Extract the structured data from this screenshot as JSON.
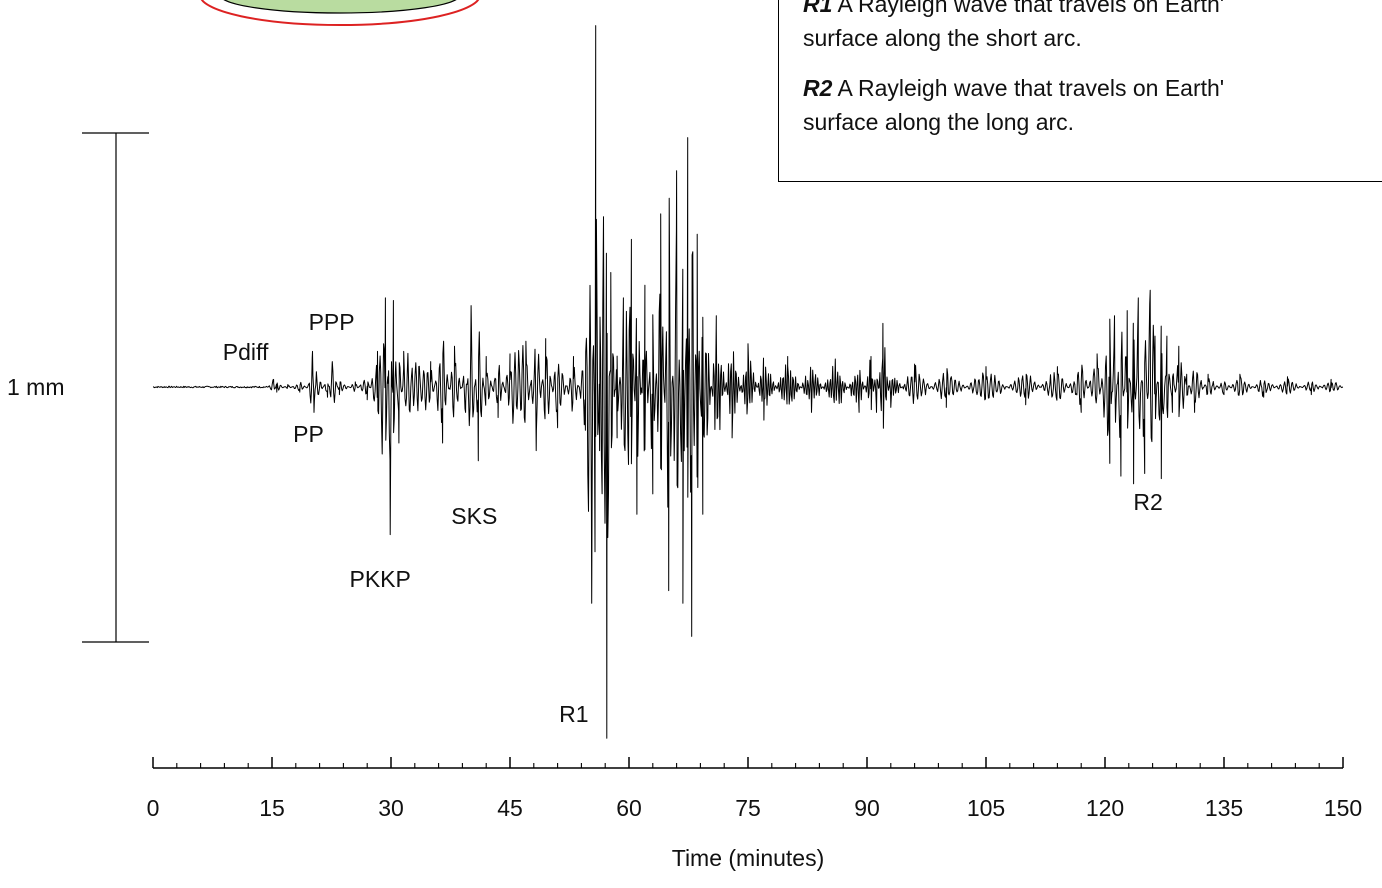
{
  "chart_data": {
    "type": "line",
    "xlabel": "Time (minutes)",
    "xlim": [
      0,
      150
    ],
    "x_ticks": [
      0,
      15,
      30,
      45,
      60,
      75,
      90,
      105,
      120,
      135,
      150
    ],
    "x_minor_tick_step": 3,
    "ylim": [
      -1.35,
      1.35
    ],
    "scale_bar": {
      "label": "1 mm",
      "value": 1
    },
    "grid": false,
    "annotations": [
      {
        "label": "Pdiff",
        "x": 15.2
      },
      {
        "label": "PPP",
        "x": 20.5
      },
      {
        "label": "PP",
        "x": 20.1
      },
      {
        "label": "PKKP",
        "x": 29.9
      },
      {
        "label": "SKS",
        "x": 41.0
      },
      {
        "label": "R1",
        "x": 57.2
      },
      {
        "label": "R2",
        "x": 123.8
      }
    ],
    "series": [
      {
        "points": [
          [
            0,
            0
          ],
          [
            14.5,
            0
          ],
          [
            15.2,
            0.03
          ],
          [
            15.6,
            -0.02
          ],
          [
            17,
            0.01
          ],
          [
            18.5,
            -0.02
          ],
          [
            19.6,
            0.01
          ],
          [
            20.1,
            0.14
          ],
          [
            20.3,
            -0.1
          ],
          [
            20.6,
            0.06
          ],
          [
            22,
            -0.04
          ],
          [
            22.6,
            0.1
          ],
          [
            23.5,
            -0.03
          ],
          [
            25.5,
            0.02
          ],
          [
            27,
            -0.05
          ],
          [
            28.3,
            0.14
          ],
          [
            29.3,
            0.35
          ],
          [
            29.6,
            0.04
          ],
          [
            29.9,
            -0.58
          ],
          [
            30.3,
            0.34
          ],
          [
            31,
            -0.22
          ],
          [
            31.6,
            0.14
          ],
          [
            33.5,
            0.08
          ],
          [
            35,
            0.1
          ],
          [
            36.5,
            -0.22
          ],
          [
            38,
            0.16
          ],
          [
            39.4,
            -0.1
          ],
          [
            40.1,
            0.32
          ],
          [
            41,
            -0.29
          ],
          [
            42,
            0.12
          ],
          [
            43.5,
            -0.12
          ],
          [
            45,
            0.13
          ],
          [
            47,
            0.18
          ],
          [
            48.3,
            -0.25
          ],
          [
            49.5,
            0.19
          ],
          [
            51,
            -0.16
          ],
          [
            53,
            0.12
          ],
          [
            54.5,
            -0.17
          ],
          [
            55.3,
            -0.85
          ],
          [
            55.8,
            1.42
          ],
          [
            56.3,
            -0.25
          ],
          [
            57.2,
            -1.38
          ],
          [
            57.7,
            0.45
          ],
          [
            58.5,
            -0.2
          ],
          [
            59.3,
            0.35
          ],
          [
            60.3,
            0.58
          ],
          [
            61,
            -0.5
          ],
          [
            62,
            0.4
          ],
          [
            63,
            -0.42
          ],
          [
            64,
            0.68
          ],
          [
            65,
            -0.8
          ],
          [
            66,
            0.85
          ],
          [
            66.8,
            -0.85
          ],
          [
            67.4,
            0.98
          ],
          [
            67.9,
            -0.98
          ],
          [
            68.6,
            0.6
          ],
          [
            69.3,
            -0.5
          ],
          [
            71,
            0.28
          ],
          [
            73,
            -0.2
          ],
          [
            75,
            0.17
          ],
          [
            77,
            -0.13
          ],
          [
            80,
            0.12
          ],
          [
            83,
            -0.1
          ],
          [
            86,
            0.11
          ],
          [
            89,
            -0.1
          ],
          [
            90.5,
            0.12
          ],
          [
            91.2,
            -0.1
          ],
          [
            92,
            0.25
          ],
          [
            93,
            -0.08
          ],
          [
            96,
            0.09
          ],
          [
            100,
            -0.08
          ],
          [
            105,
            0.08
          ],
          [
            110,
            -0.07
          ],
          [
            114,
            0.08
          ],
          [
            117,
            -0.1
          ],
          [
            119,
            0.13
          ],
          [
            120.6,
            -0.3
          ],
          [
            121.2,
            0.28
          ],
          [
            122,
            -0.35
          ],
          [
            122.8,
            0.3
          ],
          [
            123.6,
            -0.38
          ],
          [
            124.2,
            0.35
          ],
          [
            125,
            -0.34
          ],
          [
            125.7,
            0.38
          ],
          [
            126.3,
            0.2
          ],
          [
            127.1,
            -0.36
          ],
          [
            127.8,
            0.2
          ],
          [
            128.5,
            -0.1
          ],
          [
            129.3,
            0.16
          ],
          [
            130.3,
            0.05
          ],
          [
            131.3,
            -0.1
          ],
          [
            133,
            0.05
          ],
          [
            135,
            -0.03
          ],
          [
            137,
            0.05
          ],
          [
            140,
            -0.04
          ],
          [
            143,
            0.04
          ],
          [
            146,
            -0.03
          ],
          [
            148.5,
            0.03
          ],
          [
            150,
            0
          ]
        ]
      }
    ]
  },
  "legend": {
    "entries": [
      {
        "key": "R1",
        "lines": [
          "A Rayleigh wave that travels on Earth'",
          "surface along the short arc."
        ]
      },
      {
        "key": "R2",
        "lines": [
          "A Rayleigh wave that travels on Earth'",
          "surface along the long arc."
        ]
      }
    ]
  },
  "globe_colors": {
    "ring": "#dd2222",
    "fill": "#b9dca0"
  }
}
